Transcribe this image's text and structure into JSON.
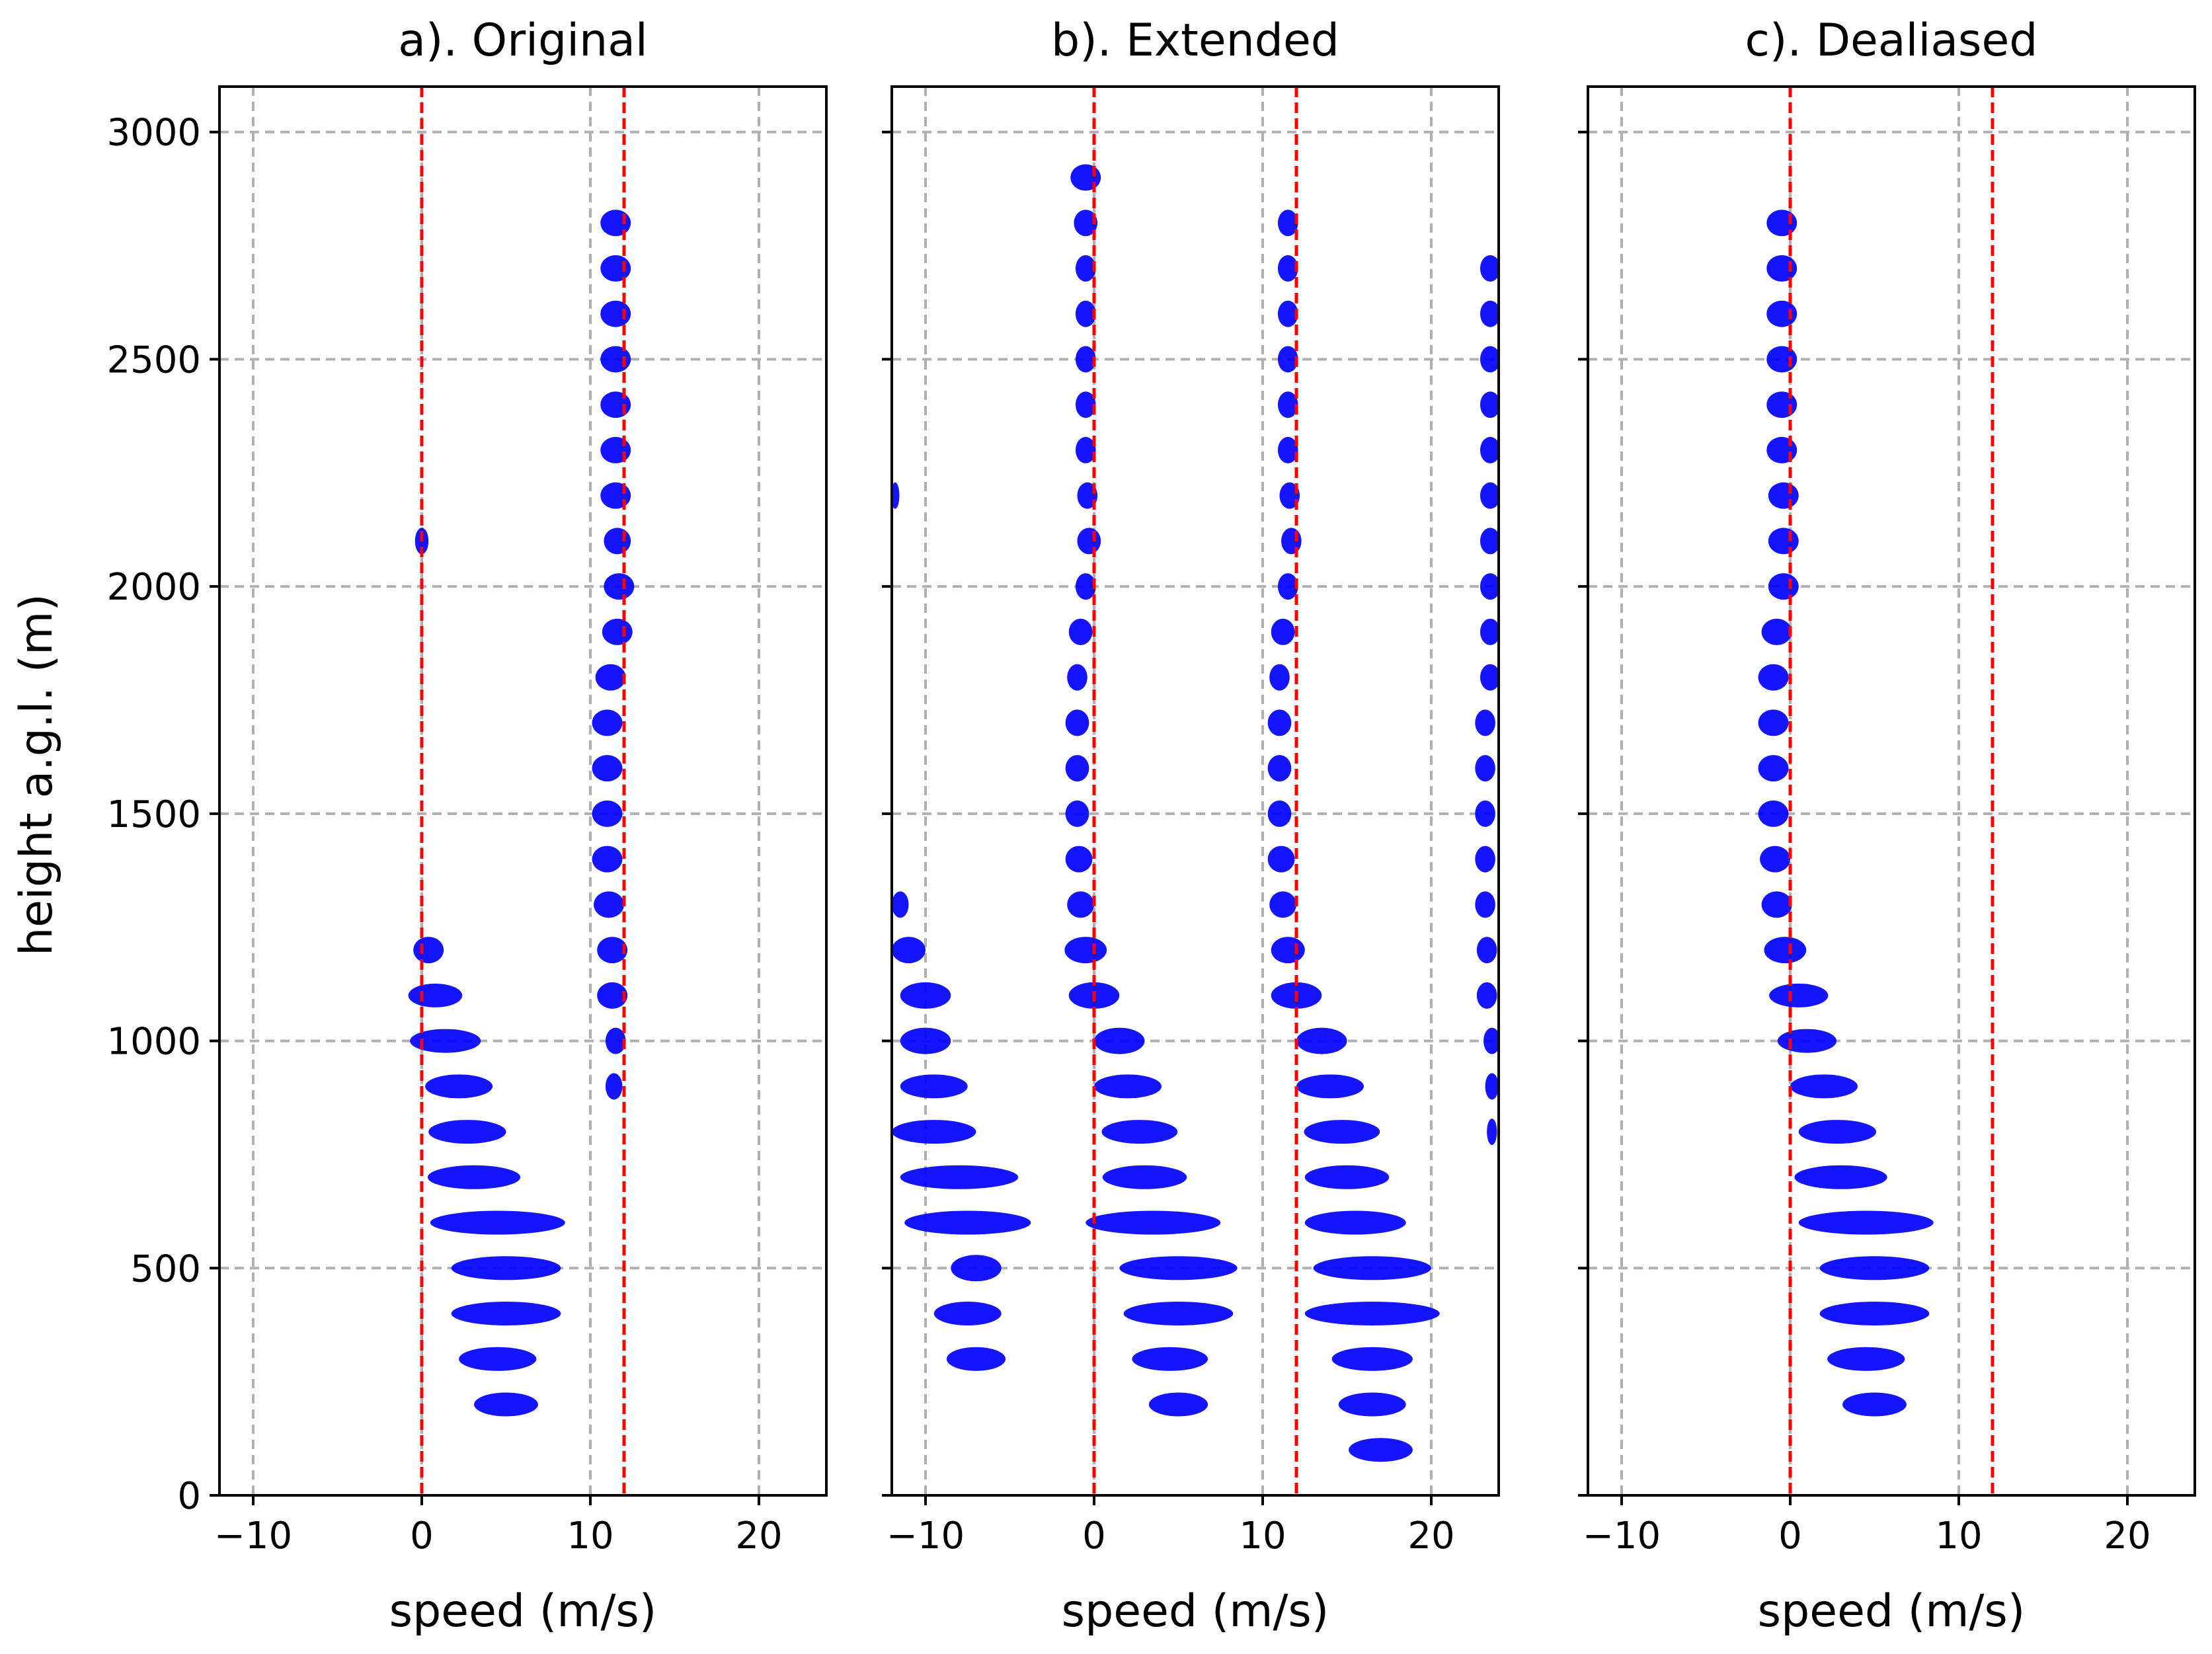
{
  "figure": {
    "ylabel": "height a.g.l. (m)"
  },
  "chart_data": [
    {
      "type": "scatter",
      "title": "a). Original",
      "xlabel": "speed (m/s)",
      "ylabel": "height a.g.l. (m)",
      "xlim": [
        -12,
        24
      ],
      "ylim": [
        0,
        3100
      ],
      "xticks": [
        -10,
        0,
        10,
        20
      ],
      "yticks": [
        0,
        500,
        1000,
        1500,
        2000,
        2500,
        3000
      ],
      "grid": true,
      "nyquist_lines": [
        0,
        12
      ],
      "series": [
        {
          "name": "spectra",
          "color": "#0000ff",
          "points": [
            {
              "x": 11.5,
              "y": 2800,
              "w": 1.8
            },
            {
              "x": 11.5,
              "y": 2700,
              "w": 1.8
            },
            {
              "x": 11.5,
              "y": 2600,
              "w": 1.8
            },
            {
              "x": 11.5,
              "y": 2500,
              "w": 1.8
            },
            {
              "x": 11.5,
              "y": 2400,
              "w": 1.8
            },
            {
              "x": 11.5,
              "y": 2300,
              "w": 1.8
            },
            {
              "x": 11.5,
              "y": 2200,
              "w": 1.8
            },
            {
              "x": 11.6,
              "y": 2100,
              "w": 1.6
            },
            {
              "x": 11.7,
              "y": 2000,
              "w": 1.8
            },
            {
              "x": 11.6,
              "y": 1900,
              "w": 1.8
            },
            {
              "x": 11.2,
              "y": 1800,
              "w": 1.8
            },
            {
              "x": 11.0,
              "y": 1700,
              "w": 1.8
            },
            {
              "x": 11.0,
              "y": 1600,
              "w": 1.8
            },
            {
              "x": 11.0,
              "y": 1500,
              "w": 1.8
            },
            {
              "x": 11.0,
              "y": 1400,
              "w": 1.8
            },
            {
              "x": 11.1,
              "y": 1300,
              "w": 1.8
            },
            {
              "x": 11.3,
              "y": 1200,
              "w": 1.8
            },
            {
              "x": 11.3,
              "y": 1100,
              "w": 1.8
            },
            {
              "x": 11.5,
              "y": 1000,
              "w": 1.2
            },
            {
              "x": 11.4,
              "y": 900,
              "w": 1.0
            },
            {
              "x": 0.0,
              "y": 2100,
              "w": 0.8
            },
            {
              "x": 0.4,
              "y": 1200,
              "w": 1.8
            },
            {
              "x": 0.8,
              "y": 1100,
              "w": 3.2
            },
            {
              "x": 1.4,
              "y": 1000,
              "w": 4.2
            },
            {
              "x": 2.2,
              "y": 900,
              "w": 4.0
            },
            {
              "x": 2.7,
              "y": 800,
              "w": 4.6
            },
            {
              "x": 3.1,
              "y": 700,
              "w": 5.5
            },
            {
              "x": 4.5,
              "y": 600,
              "w": 8.0
            },
            {
              "x": 5.0,
              "y": 500,
              "w": 6.5
            },
            {
              "x": 5.0,
              "y": 400,
              "w": 6.5
            },
            {
              "x": 4.5,
              "y": 300,
              "w": 4.6
            },
            {
              "x": 5.0,
              "y": 200,
              "w": 3.8
            }
          ]
        }
      ]
    },
    {
      "type": "scatter",
      "title": "b). Extended",
      "xlabel": "speed (m/s)",
      "ylabel": "",
      "xlim": [
        -12,
        24
      ],
      "ylim": [
        0,
        3100
      ],
      "xticks": [
        -10,
        0,
        10,
        20
      ],
      "yticks": [
        0,
        500,
        1000,
        1500,
        2000,
        2500,
        3000
      ],
      "grid": true,
      "nyquist_lines": [
        0,
        12
      ],
      "series": [
        {
          "name": "spectra",
          "color": "#0000ff",
          "points": [
            {
              "x": -0.5,
              "y": 2900,
              "w": 1.8
            },
            {
              "x": -0.5,
              "y": 2800,
              "w": 1.4
            },
            {
              "x": -0.5,
              "y": 2700,
              "w": 1.2
            },
            {
              "x": -0.5,
              "y": 2600,
              "w": 1.2
            },
            {
              "x": -0.5,
              "y": 2500,
              "w": 1.2
            },
            {
              "x": -0.5,
              "y": 2400,
              "w": 1.2
            },
            {
              "x": -0.5,
              "y": 2300,
              "w": 1.2
            },
            {
              "x": -0.4,
              "y": 2200,
              "w": 1.2
            },
            {
              "x": -0.3,
              "y": 2100,
              "w": 1.4
            },
            {
              "x": -0.5,
              "y": 2000,
              "w": 1.2
            },
            {
              "x": -0.8,
              "y": 1900,
              "w": 1.4
            },
            {
              "x": -1.0,
              "y": 1800,
              "w": 1.2
            },
            {
              "x": -1.0,
              "y": 1700,
              "w": 1.4
            },
            {
              "x": -1.0,
              "y": 1600,
              "w": 1.4
            },
            {
              "x": -1.0,
              "y": 1500,
              "w": 1.4
            },
            {
              "x": -0.9,
              "y": 1400,
              "w": 1.6
            },
            {
              "x": -0.8,
              "y": 1300,
              "w": 1.6
            },
            {
              "x": -0.5,
              "y": 1200,
              "w": 2.5
            },
            {
              "x": 0.0,
              "y": 1100,
              "w": 3.0
            },
            {
              "x": 1.5,
              "y": 1000,
              "w": 3.0
            },
            {
              "x": 2.0,
              "y": 900,
              "w": 4.0
            },
            {
              "x": 2.7,
              "y": 800,
              "w": 4.5
            },
            {
              "x": 3.0,
              "y": 700,
              "w": 5.0
            },
            {
              "x": 3.5,
              "y": 600,
              "w": 8.0
            },
            {
              "x": 5.0,
              "y": 500,
              "w": 7.0
            },
            {
              "x": 5.0,
              "y": 400,
              "w": 6.5
            },
            {
              "x": 4.5,
              "y": 300,
              "w": 4.5
            },
            {
              "x": 5.0,
              "y": 200,
              "w": 3.5
            },
            {
              "x": 11.5,
              "y": 2800,
              "w": 1.2
            },
            {
              "x": 11.5,
              "y": 2700,
              "w": 1.2
            },
            {
              "x": 11.5,
              "y": 2600,
              "w": 1.2
            },
            {
              "x": 11.5,
              "y": 2500,
              "w": 1.2
            },
            {
              "x": 11.5,
              "y": 2400,
              "w": 1.2
            },
            {
              "x": 11.5,
              "y": 2300,
              "w": 1.2
            },
            {
              "x": 11.6,
              "y": 2200,
              "w": 1.2
            },
            {
              "x": 11.7,
              "y": 2100,
              "w": 1.2
            },
            {
              "x": 11.5,
              "y": 2000,
              "w": 1.2
            },
            {
              "x": 11.2,
              "y": 1900,
              "w": 1.4
            },
            {
              "x": 11.0,
              "y": 1800,
              "w": 1.2
            },
            {
              "x": 11.0,
              "y": 1700,
              "w": 1.4
            },
            {
              "x": 11.0,
              "y": 1600,
              "w": 1.4
            },
            {
              "x": 11.0,
              "y": 1500,
              "w": 1.4
            },
            {
              "x": 11.1,
              "y": 1400,
              "w": 1.6
            },
            {
              "x": 11.2,
              "y": 1300,
              "w": 1.6
            },
            {
              "x": 11.5,
              "y": 1200,
              "w": 2.0
            },
            {
              "x": 12.0,
              "y": 1100,
              "w": 3.0
            },
            {
              "x": 13.5,
              "y": 1000,
              "w": 3.0
            },
            {
              "x": 14.0,
              "y": 900,
              "w": 4.0
            },
            {
              "x": 14.7,
              "y": 800,
              "w": 4.5
            },
            {
              "x": 15.0,
              "y": 700,
              "w": 5.0
            },
            {
              "x": 15.5,
              "y": 600,
              "w": 6.0
            },
            {
              "x": 16.5,
              "y": 500,
              "w": 7.0
            },
            {
              "x": 16.5,
              "y": 400,
              "w": 8.0
            },
            {
              "x": 16.5,
              "y": 300,
              "w": 4.8
            },
            {
              "x": 16.5,
              "y": 200,
              "w": 4.0
            },
            {
              "x": 17.0,
              "y": 100,
              "w": 3.8
            },
            {
              "x": 23.5,
              "y": 2700,
              "w": 1.2
            },
            {
              "x": 23.5,
              "y": 2600,
              "w": 1.2
            },
            {
              "x": 23.5,
              "y": 2500,
              "w": 1.2
            },
            {
              "x": 23.5,
              "y": 2400,
              "w": 1.2
            },
            {
              "x": 23.5,
              "y": 2300,
              "w": 1.2
            },
            {
              "x": 23.5,
              "y": 2200,
              "w": 1.2
            },
            {
              "x": 23.5,
              "y": 2100,
              "w": 1.2
            },
            {
              "x": 23.5,
              "y": 2000,
              "w": 1.2
            },
            {
              "x": 23.5,
              "y": 1900,
              "w": 1.2
            },
            {
              "x": 23.5,
              "y": 1800,
              "w": 1.2
            },
            {
              "x": 23.2,
              "y": 1700,
              "w": 1.2
            },
            {
              "x": 23.2,
              "y": 1600,
              "w": 1.2
            },
            {
              "x": 23.2,
              "y": 1500,
              "w": 1.2
            },
            {
              "x": 23.2,
              "y": 1400,
              "w": 1.2
            },
            {
              "x": 23.2,
              "y": 1300,
              "w": 1.2
            },
            {
              "x": 23.3,
              "y": 1200,
              "w": 1.2
            },
            {
              "x": 23.3,
              "y": 1100,
              "w": 1.2
            },
            {
              "x": 23.6,
              "y": 1000,
              "w": 1.0
            },
            {
              "x": 23.6,
              "y": 900,
              "w": 0.8
            },
            {
              "x": 23.6,
              "y": 800,
              "w": 0.6
            },
            {
              "x": -11.8,
              "y": 2200,
              "w": 0.5
            },
            {
              "x": -11.5,
              "y": 1300,
              "w": 1.0
            },
            {
              "x": -11.0,
              "y": 1200,
              "w": 2.0
            },
            {
              "x": -10.0,
              "y": 1100,
              "w": 3.0
            },
            {
              "x": -10.0,
              "y": 1000,
              "w": 3.0
            },
            {
              "x": -9.5,
              "y": 900,
              "w": 4.0
            },
            {
              "x": -9.5,
              "y": 800,
              "w": 5.0
            },
            {
              "x": -8.0,
              "y": 700,
              "w": 7.0
            },
            {
              "x": -7.5,
              "y": 600,
              "w": 7.5
            },
            {
              "x": -7.0,
              "y": 500,
              "w": 3.0
            },
            {
              "x": -7.5,
              "y": 400,
              "w": 4.0
            },
            {
              "x": -7.0,
              "y": 300,
              "w": 3.5
            }
          ]
        }
      ]
    },
    {
      "type": "scatter",
      "title": "c). Dealiased",
      "xlabel": "speed (m/s)",
      "ylabel": "",
      "xlim": [
        -12,
        24
      ],
      "ylim": [
        0,
        3100
      ],
      "xticks": [
        -10,
        0,
        10,
        20
      ],
      "yticks": [
        0,
        500,
        1000,
        1500,
        2000,
        2500,
        3000
      ],
      "grid": true,
      "nyquist_lines": [
        0,
        12
      ],
      "series": [
        {
          "name": "spectra",
          "color": "#0000ff",
          "points": [
            {
              "x": -0.5,
              "y": 2800,
              "w": 1.8
            },
            {
              "x": -0.5,
              "y": 2700,
              "w": 1.8
            },
            {
              "x": -0.5,
              "y": 2600,
              "w": 1.8
            },
            {
              "x": -0.5,
              "y": 2500,
              "w": 1.8
            },
            {
              "x": -0.5,
              "y": 2400,
              "w": 1.8
            },
            {
              "x": -0.5,
              "y": 2300,
              "w": 1.8
            },
            {
              "x": -0.4,
              "y": 2200,
              "w": 1.8
            },
            {
              "x": -0.4,
              "y": 2100,
              "w": 1.8
            },
            {
              "x": -0.4,
              "y": 2000,
              "w": 1.8
            },
            {
              "x": -0.8,
              "y": 1900,
              "w": 1.8
            },
            {
              "x": -1.0,
              "y": 1800,
              "w": 1.8
            },
            {
              "x": -1.0,
              "y": 1700,
              "w": 1.8
            },
            {
              "x": -1.0,
              "y": 1600,
              "w": 1.8
            },
            {
              "x": -1.0,
              "y": 1500,
              "w": 1.8
            },
            {
              "x": -0.9,
              "y": 1400,
              "w": 1.8
            },
            {
              "x": -0.8,
              "y": 1300,
              "w": 1.8
            },
            {
              "x": -0.3,
              "y": 1200,
              "w": 2.5
            },
            {
              "x": 0.5,
              "y": 1100,
              "w": 3.5
            },
            {
              "x": 1.0,
              "y": 1000,
              "w": 3.5
            },
            {
              "x": 2.0,
              "y": 900,
              "w": 4.0
            },
            {
              "x": 2.8,
              "y": 800,
              "w": 4.6
            },
            {
              "x": 3.0,
              "y": 700,
              "w": 5.5
            },
            {
              "x": 4.5,
              "y": 600,
              "w": 8.0
            },
            {
              "x": 5.0,
              "y": 500,
              "w": 6.5
            },
            {
              "x": 5.0,
              "y": 400,
              "w": 6.5
            },
            {
              "x": 4.5,
              "y": 300,
              "w": 4.6
            },
            {
              "x": 5.0,
              "y": 200,
              "w": 3.8
            }
          ]
        }
      ]
    }
  ]
}
